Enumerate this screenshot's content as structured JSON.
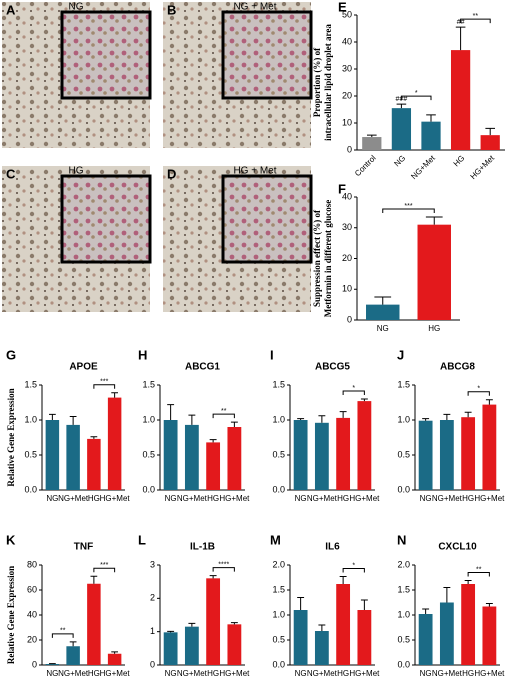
{
  "micrographs": [
    {
      "panel": "A",
      "label": "NG"
    },
    {
      "panel": "B",
      "label": "NG + Met"
    },
    {
      "panel": "C",
      "label": "HG"
    },
    {
      "panel": "D",
      "label": "HG + Met"
    }
  ],
  "chart_data": [
    {
      "type": "bar",
      "panel": "E",
      "ylabel": [
        "Proportion (%) of",
        "intracellular lipid droplet area"
      ],
      "categories": [
        "Control",
        "NG",
        "NG+Met",
        "HG",
        "HG+Met"
      ],
      "values": [
        4.8,
        15.5,
        10.5,
        37,
        5.5
      ],
      "errors": [
        0.7,
        1.5,
        2.5,
        8.5,
        2.5
      ],
      "colors": [
        "#8c8c8c",
        "#1b6b86",
        "#1b6b86",
        "#e3191c",
        "#e3191c"
      ],
      "xlabel_rotation": -45,
      "ylim": [
        0,
        50
      ],
      "yticks": [
        0,
        10,
        20,
        30,
        40,
        50
      ],
      "annotations": [
        {
          "category": "NG",
          "label": "###"
        },
        {
          "category": "HG",
          "label": "##"
        }
      ],
      "brackets": [
        {
          "between": [
            "NG",
            "NG+Met"
          ],
          "label": "*"
        },
        {
          "between": [
            "HG",
            "HG+Met"
          ],
          "label": "**"
        }
      ]
    },
    {
      "type": "bar",
      "panel": "F",
      "ylabel": [
        "Suppression effect (%) of",
        "Metformin in different glucose"
      ],
      "categories": [
        "NG",
        "HG"
      ],
      "values": [
        5,
        31
      ],
      "errors": [
        2.5,
        2.5
      ],
      "colors": [
        "#1b6b86",
        "#e3191c"
      ],
      "ylim": [
        0,
        40
      ],
      "yticks": [
        0,
        10,
        20,
        30,
        40
      ],
      "brackets": [
        {
          "between": [
            "NG",
            "HG"
          ],
          "label": "***"
        }
      ]
    },
    {
      "type": "bar",
      "panel": "G",
      "title": "APOE",
      "ylabel": "Relative Gene Expression",
      "categories": [
        "NG",
        "NG+Met",
        "HG",
        "HG+Met"
      ],
      "values": [
        1.0,
        0.93,
        0.73,
        1.32
      ],
      "errors": [
        0.08,
        0.12,
        0.03,
        0.07
      ],
      "colors": [
        "#1b6b86",
        "#1b6b86",
        "#e3191c",
        "#e3191c"
      ],
      "ylim": [
        0,
        1.5
      ],
      "yticks": [
        {
          "value": 0,
          "label": "0.0"
        },
        0.5,
        {
          "value": 1,
          "label": "1.0"
        },
        1.5
      ],
      "brackets": [
        {
          "between": [
            "HG",
            "HG+Met"
          ],
          "label": "***"
        }
      ]
    },
    {
      "type": "bar",
      "panel": "H",
      "title": "ABCG1",
      "categories": [
        "NG",
        "NG+Met",
        "HG",
        "HG+Met"
      ],
      "values": [
        1.0,
        0.93,
        0.68,
        0.9
      ],
      "errors": [
        0.22,
        0.14,
        0.04,
        0.07
      ],
      "colors": [
        "#1b6b86",
        "#1b6b86",
        "#e3191c",
        "#e3191c"
      ],
      "ylim": [
        0,
        1.5
      ],
      "yticks": [
        {
          "value": 0,
          "label": "0.0"
        },
        0.5,
        {
          "value": 1,
          "label": "1.0"
        },
        1.5
      ],
      "brackets": [
        {
          "between": [
            "HG",
            "HG+Met"
          ],
          "label": "**"
        }
      ]
    },
    {
      "type": "bar",
      "panel": "I",
      "title": "ABCG5",
      "categories": [
        "NG",
        "NG+Met",
        "HG",
        "HG+Met"
      ],
      "values": [
        1.0,
        0.96,
        1.03,
        1.27
      ],
      "errors": [
        0.02,
        0.1,
        0.09,
        0.03
      ],
      "colors": [
        "#1b6b86",
        "#1b6b86",
        "#e3191c",
        "#e3191c"
      ],
      "ylim": [
        0,
        1.5
      ],
      "yticks": [
        {
          "value": 0,
          "label": "0.0"
        },
        0.5,
        {
          "value": 1,
          "label": "1.0"
        },
        1.5
      ],
      "brackets": [
        {
          "between": [
            "HG",
            "HG+Met"
          ],
          "label": "*"
        }
      ]
    },
    {
      "type": "bar",
      "panel": "J",
      "title": "ABCG8",
      "categories": [
        "NG",
        "NG+Met",
        "HG",
        "HG+Met"
      ],
      "values": [
        0.99,
        1.0,
        1.04,
        1.22
      ],
      "errors": [
        0.03,
        0.08,
        0.07,
        0.07
      ],
      "colors": [
        "#1b6b86",
        "#1b6b86",
        "#e3191c",
        "#e3191c"
      ],
      "ylim": [
        0,
        1.5
      ],
      "yticks": [
        {
          "value": 0,
          "label": "0.0"
        },
        0.5,
        {
          "value": 1,
          "label": "1.0"
        },
        1.5
      ],
      "brackets": [
        {
          "between": [
            "HG",
            "HG+Met"
          ],
          "label": "*"
        }
      ]
    },
    {
      "type": "bar",
      "panel": "K",
      "title": "TNF",
      "ylabel": "Relative Gene Expression",
      "categories": [
        "NG",
        "NG+Met",
        "HG",
        "HG+Met"
      ],
      "values": [
        0.8,
        15,
        65,
        9
      ],
      "errors": [
        0.3,
        3.5,
        6,
        1.5
      ],
      "colors": [
        "#1b6b86",
        "#1b6b86",
        "#e3191c",
        "#e3191c"
      ],
      "ylim": [
        0,
        80
      ],
      "yticks": [
        0,
        20,
        40,
        60,
        80
      ],
      "brackets": [
        {
          "between": [
            "NG",
            "NG+Met"
          ],
          "label": "**"
        },
        {
          "between": [
            "HG",
            "HG+Met"
          ],
          "label": "***"
        }
      ]
    },
    {
      "type": "bar",
      "panel": "L",
      "title": "IL-1B",
      "categories": [
        "NG",
        "NG+Met",
        "HG",
        "HG+Met"
      ],
      "values": [
        0.98,
        1.15,
        2.6,
        1.22
      ],
      "errors": [
        0.03,
        0.1,
        0.08,
        0.05
      ],
      "colors": [
        "#1b6b86",
        "#1b6b86",
        "#e3191c",
        "#e3191c"
      ],
      "ylim": [
        0,
        3
      ],
      "yticks": [
        0,
        1,
        2,
        3
      ],
      "brackets": [
        {
          "between": [
            "HG",
            "HG+Met"
          ],
          "label": "****"
        }
      ]
    },
    {
      "type": "bar",
      "panel": "M",
      "title": "IL6",
      "categories": [
        "NG",
        "NG+Met",
        "HG",
        "HG+Met"
      ],
      "values": [
        1.1,
        0.68,
        1.62,
        1.1
      ],
      "errors": [
        0.25,
        0.12,
        0.15,
        0.2
      ],
      "colors": [
        "#1b6b86",
        "#1b6b86",
        "#e3191c",
        "#e3191c"
      ],
      "ylim": [
        0,
        2
      ],
      "yticks": [
        {
          "value": 0,
          "label": "0.0"
        },
        0.5,
        {
          "value": 1,
          "label": "1.0"
        },
        1.5,
        {
          "value": 2,
          "label": "2.0"
        }
      ],
      "brackets": [
        {
          "between": [
            "HG",
            "HG+Met"
          ],
          "label": "*"
        }
      ]
    },
    {
      "type": "bar",
      "panel": "N",
      "title": "CXCL10",
      "categories": [
        "NG",
        "NG+Met",
        "HG",
        "HG+Met"
      ],
      "values": [
        1.02,
        1.25,
        1.62,
        1.17
      ],
      "errors": [
        0.1,
        0.3,
        0.07,
        0.06
      ],
      "colors": [
        "#1b6b86",
        "#1b6b86",
        "#e3191c",
        "#e3191c"
      ],
      "ylim": [
        0,
        2
      ],
      "yticks": [
        {
          "value": 0,
          "label": "0.0"
        },
        0.5,
        {
          "value": 1,
          "label": "1.0"
        },
        1.5,
        {
          "value": 2,
          "label": "2.0"
        }
      ],
      "brackets": [
        {
          "between": [
            "HG",
            "HG+Met"
          ],
          "label": "**"
        }
      ]
    }
  ]
}
